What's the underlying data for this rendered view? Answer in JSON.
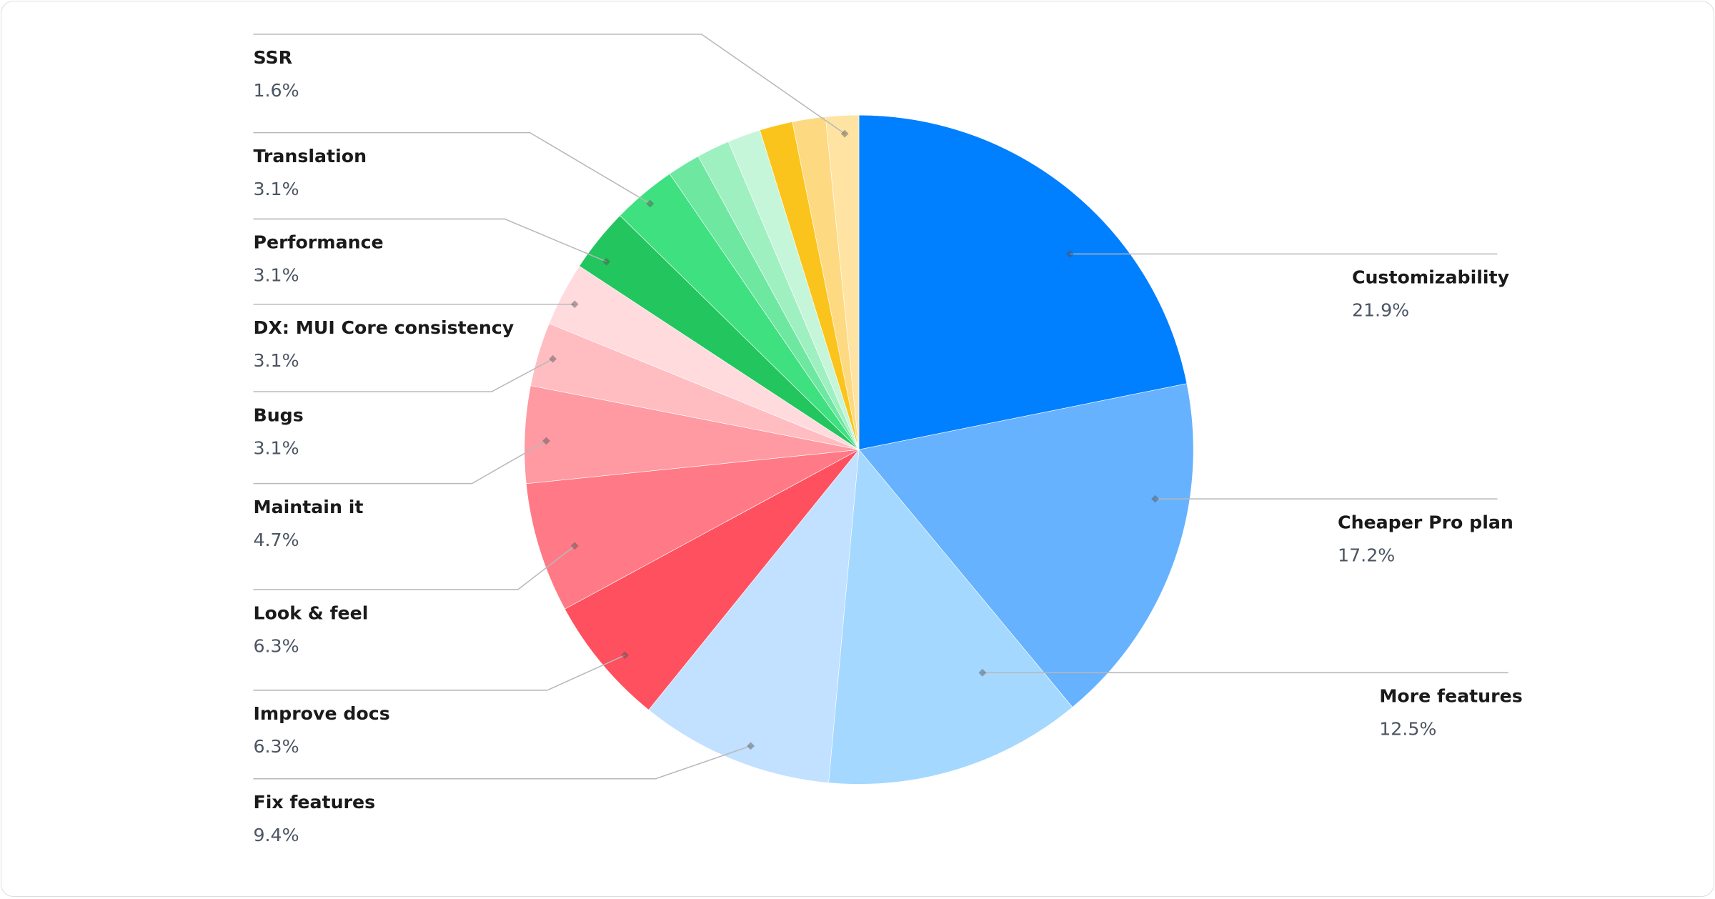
{
  "chart_data": {
    "type": "pie",
    "start": "12 o'clock, clockwise",
    "slices": [
      {
        "label": "Customizability",
        "value": 21.9,
        "color": "#007FFF"
      },
      {
        "label": "Cheaper Pro plan",
        "value": 17.2,
        "color": "#66B2FF"
      },
      {
        "label": "More features",
        "value": 12.5,
        "color": "#A5D8FF"
      },
      {
        "label": "Fix features",
        "value": 9.4,
        "color": "#C2E0FF"
      },
      {
        "label": "Improve docs",
        "value": 6.3,
        "color": "#FF505F"
      },
      {
        "label": "Look & feel",
        "value": 6.3,
        "color": "#FF7A86"
      },
      {
        "label": "Maintain it",
        "value": 4.7,
        "color": "#FF99A2"
      },
      {
        "label": "Bugs",
        "value": 3.1,
        "color": "#FFBDC2"
      },
      {
        "label": "DX: MUI Core consistency",
        "value": 3.1,
        "color": "#FFDBDE"
      },
      {
        "label": "Performance",
        "value": 3.1,
        "color": "#22C55E"
      },
      {
        "label": "Translation",
        "value": 3.1,
        "color": "#3FE080"
      },
      {
        "label": "",
        "value": 1.6,
        "color": "#6EE7A0"
      },
      {
        "label": "",
        "value": 1.6,
        "color": "#9EF0C0"
      },
      {
        "label": "",
        "value": 1.6,
        "color": "#C6F6D9"
      },
      {
        "label": "",
        "value": 1.6,
        "color": "#FBC41D"
      },
      {
        "label": "",
        "value": 1.6,
        "color": "#FDD981"
      },
      {
        "label": "SSR",
        "value": 1.6,
        "color": "#FEE3A3"
      }
    ],
    "value_suffix": "%",
    "legend": "none (leader-line labels)"
  }
}
